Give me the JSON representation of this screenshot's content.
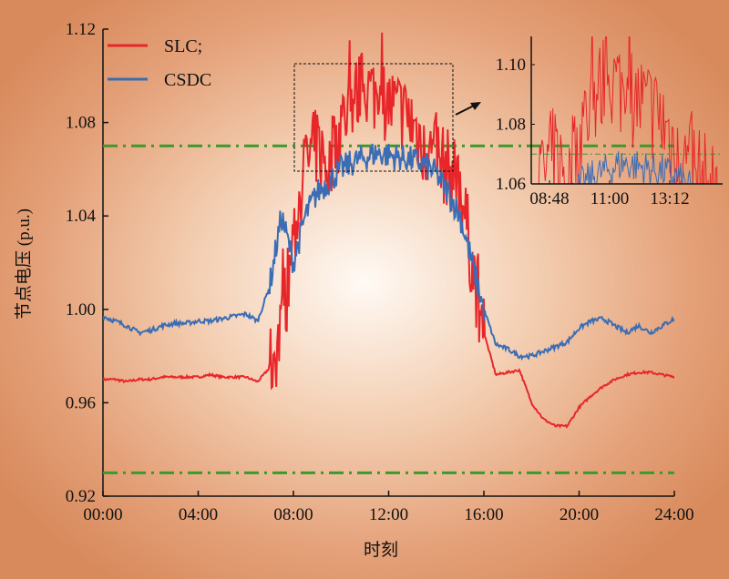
{
  "chart_data": {
    "type": "line",
    "xlabel": "时刻",
    "ylabel": "节点电压 (p.u.)",
    "xlim": [
      0,
      24
    ],
    "ylim": [
      0.92,
      1.12
    ],
    "x_ticks": [
      "00:00",
      "04:00",
      "08:00",
      "12:00",
      "16:00",
      "20:00",
      "24:00"
    ],
    "y_ticks": [
      "0.92",
      "0.96",
      "1.00",
      "1.04",
      "1.08",
      "1.12"
    ],
    "limit_lines": [
      1.07,
      0.93
    ],
    "colors": {
      "SLC": "#e8262a",
      "CSDC": "#3a6db5",
      "limit": "#3a9a2a"
    },
    "legend": {
      "position": "top-left",
      "entries": [
        "SLC;",
        "CSDC"
      ]
    },
    "x_hours": [
      0,
      0.5,
      1,
      1.5,
      2,
      2.5,
      3,
      3.5,
      4,
      4.5,
      5,
      5.5,
      6,
      6.5,
      7,
      7.5,
      8,
      8.5,
      9,
      9.5,
      10,
      10.5,
      11,
      11.5,
      12,
      12.5,
      13,
      13.5,
      14,
      14.5,
      15,
      15.5,
      16,
      16.5,
      17,
      17.5,
      18,
      18.5,
      19,
      19.5,
      20,
      20.5,
      21,
      21.5,
      22,
      22.5,
      23,
      23.5,
      24
    ],
    "series": [
      {
        "name": "SLC",
        "values": [
          0.97,
          0.97,
          0.969,
          0.97,
          0.97,
          0.971,
          0.971,
          0.971,
          0.971,
          0.972,
          0.971,
          0.971,
          0.971,
          0.969,
          0.975,
          0.99,
          1.03,
          1.062,
          1.07,
          1.06,
          1.08,
          1.09,
          1.095,
          1.092,
          1.088,
          1.085,
          1.08,
          1.07,
          1.065,
          1.06,
          1.055,
          1.02,
          0.99,
          0.972,
          0.973,
          0.974,
          0.96,
          0.953,
          0.95,
          0.95,
          0.958,
          0.963,
          0.967,
          0.97,
          0.972,
          0.973,
          0.973,
          0.972,
          0.971
        ]
      },
      {
        "name": "CSDC",
        "values": [
          0.997,
          0.995,
          0.993,
          0.99,
          0.991,
          0.993,
          0.994,
          0.994,
          0.995,
          0.995,
          0.996,
          0.997,
          0.998,
          0.995,
          1.01,
          1.04,
          1.02,
          1.04,
          1.05,
          1.055,
          1.06,
          1.063,
          1.065,
          1.067,
          1.066,
          1.065,
          1.064,
          1.062,
          1.058,
          1.05,
          1.04,
          1.02,
          1.0,
          0.985,
          0.983,
          0.98,
          0.98,
          0.982,
          0.984,
          0.986,
          0.992,
          0.995,
          0.996,
          0.993,
          0.99,
          0.993,
          0.99,
          0.993,
          0.996
        ]
      }
    ],
    "inset": {
      "xlim": [
        8.13,
        15.13
      ],
      "ylim": [
        1.06,
        1.105
      ],
      "x_ticks": [
        "08:48",
        "11:00",
        "13:12"
      ],
      "y_ticks": [
        "1.06",
        "1.08",
        "1.10"
      ]
    }
  }
}
